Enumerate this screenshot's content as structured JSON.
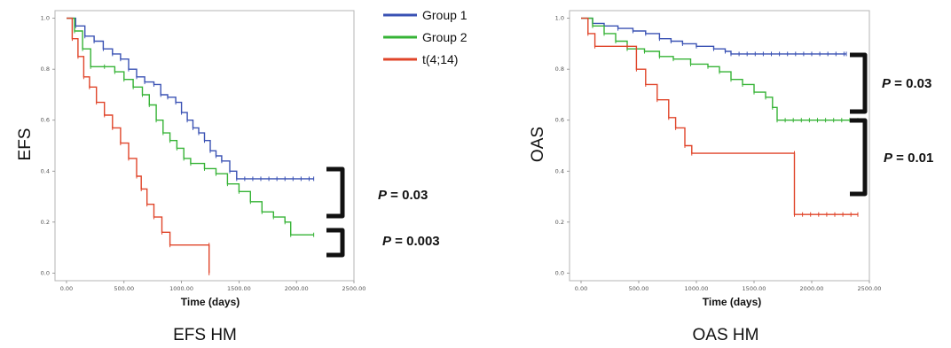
{
  "legend": [
    {
      "label": "Group 1",
      "color": "#3a52b4"
    },
    {
      "label": "Group 2",
      "color": "#36b336"
    },
    {
      "label": "t(4;14)",
      "color": "#e0452a"
    }
  ],
  "pvalue_prefix": "P",
  "chart_data": [
    {
      "type": "line",
      "title": "EFS HM",
      "xlabel": "Time (days)",
      "ylabel": "EFS",
      "xlim": [
        -100,
        2500
      ],
      "ylim": [
        -0.03,
        1.03
      ],
      "x_ticks": [
        "0.00",
        "500.00",
        "1000.00",
        "1500.00",
        "2000.00",
        "2500.00"
      ],
      "y_ticks": [
        "0.0",
        "0.2",
        "0.4",
        "0.6",
        "0.8",
        "1.0"
      ],
      "series": [
        {
          "name": "Group 1",
          "color": "#3a52b4",
          "points": [
            [
              0,
              1.0
            ],
            [
              80,
              0.97
            ],
            [
              160,
              0.93
            ],
            [
              240,
              0.91
            ],
            [
              320,
              0.88
            ],
            [
              400,
              0.86
            ],
            [
              470,
              0.84
            ],
            [
              540,
              0.8
            ],
            [
              610,
              0.77
            ],
            [
              680,
              0.75
            ],
            [
              760,
              0.74
            ],
            [
              820,
              0.7
            ],
            [
              880,
              0.69
            ],
            [
              950,
              0.67
            ],
            [
              1000,
              0.63
            ],
            [
              1050,
              0.6
            ],
            [
              1100,
              0.57
            ],
            [
              1150,
              0.55
            ],
            [
              1200,
              0.52
            ],
            [
              1250,
              0.48
            ],
            [
              1300,
              0.46
            ],
            [
              1350,
              0.44
            ],
            [
              1420,
              0.4
            ],
            [
              1480,
              0.37
            ],
            [
              2150,
              0.37
            ]
          ]
        },
        {
          "name": "Group 2",
          "color": "#36b336",
          "points": [
            [
              0,
              1.0
            ],
            [
              70,
              0.95
            ],
            [
              140,
              0.88
            ],
            [
              210,
              0.81
            ],
            [
              330,
              0.81
            ],
            [
              420,
              0.79
            ],
            [
              500,
              0.76
            ],
            [
              580,
              0.73
            ],
            [
              660,
              0.7
            ],
            [
              720,
              0.66
            ],
            [
              780,
              0.6
            ],
            [
              840,
              0.55
            ],
            [
              900,
              0.52
            ],
            [
              960,
              0.49
            ],
            [
              1020,
              0.45
            ],
            [
              1080,
              0.43
            ],
            [
              1200,
              0.41
            ],
            [
              1300,
              0.39
            ],
            [
              1400,
              0.35
            ],
            [
              1500,
              0.32
            ],
            [
              1600,
              0.28
            ],
            [
              1700,
              0.24
            ],
            [
              1800,
              0.22
            ],
            [
              1900,
              0.2
            ],
            [
              1950,
              0.15
            ],
            [
              2150,
              0.15
            ]
          ]
        },
        {
          "name": "t(4;14)",
          "color": "#e0452a",
          "points": [
            [
              0,
              1.0
            ],
            [
              50,
              0.92
            ],
            [
              100,
              0.85
            ],
            [
              150,
              0.77
            ],
            [
              200,
              0.73
            ],
            [
              260,
              0.67
            ],
            [
              330,
              0.62
            ],
            [
              400,
              0.57
            ],
            [
              470,
              0.51
            ],
            [
              540,
              0.45
            ],
            [
              610,
              0.38
            ],
            [
              650,
              0.33
            ],
            [
              700,
              0.27
            ],
            [
              760,
              0.22
            ],
            [
              830,
              0.16
            ],
            [
              900,
              0.11
            ],
            [
              1240,
              0.11
            ],
            [
              1240,
              0.0
            ]
          ]
        }
      ],
      "pvalues": [
        "= 0.03",
        "= 0.003"
      ]
    },
    {
      "type": "line",
      "title": "OAS HM",
      "xlabel": "Time (days)",
      "ylabel": "OAS",
      "xlim": [
        -100,
        2500
      ],
      "ylim": [
        -0.03,
        1.03
      ],
      "x_ticks": [
        "0.00",
        "500.00",
        "1000.00",
        "1500.00",
        "2000.00",
        "2500.00"
      ],
      "y_ticks": [
        "0.0",
        "0.2",
        "0.4",
        "0.6",
        "0.8",
        "1.0"
      ],
      "series": [
        {
          "name": "Group 1",
          "color": "#3a52b4",
          "points": [
            [
              0,
              1.0
            ],
            [
              100,
              0.98
            ],
            [
              200,
              0.97
            ],
            [
              320,
              0.96
            ],
            [
              450,
              0.95
            ],
            [
              560,
              0.94
            ],
            [
              680,
              0.92
            ],
            [
              780,
              0.91
            ],
            [
              880,
              0.9
            ],
            [
              1000,
              0.89
            ],
            [
              1150,
              0.88
            ],
            [
              1250,
              0.87
            ],
            [
              1300,
              0.86
            ],
            [
              2300,
              0.86
            ]
          ]
        },
        {
          "name": "Group 2",
          "color": "#36b336",
          "points": [
            [
              0,
              1.0
            ],
            [
              100,
              0.97
            ],
            [
              200,
              0.94
            ],
            [
              300,
              0.91
            ],
            [
              400,
              0.88
            ],
            [
              550,
              0.87
            ],
            [
              680,
              0.85
            ],
            [
              800,
              0.84
            ],
            [
              950,
              0.82
            ],
            [
              1100,
              0.81
            ],
            [
              1200,
              0.79
            ],
            [
              1300,
              0.76
            ],
            [
              1400,
              0.74
            ],
            [
              1500,
              0.71
            ],
            [
              1600,
              0.69
            ],
            [
              1660,
              0.65
            ],
            [
              1700,
              0.6
            ],
            [
              2400,
              0.6
            ]
          ]
        },
        {
          "name": "t(4;14)",
          "color": "#e0452a",
          "points": [
            [
              0,
              1.0
            ],
            [
              60,
              0.94
            ],
            [
              120,
              0.89
            ],
            [
              400,
              0.89
            ],
            [
              480,
              0.8
            ],
            [
              560,
              0.74
            ],
            [
              660,
              0.68
            ],
            [
              760,
              0.61
            ],
            [
              820,
              0.57
            ],
            [
              900,
              0.5
            ],
            [
              960,
              0.47
            ],
            [
              1850,
              0.47
            ],
            [
              1850,
              0.23
            ],
            [
              2400,
              0.23
            ]
          ]
        }
      ],
      "pvalues": [
        "= 0.03",
        "= 0.01"
      ]
    }
  ]
}
